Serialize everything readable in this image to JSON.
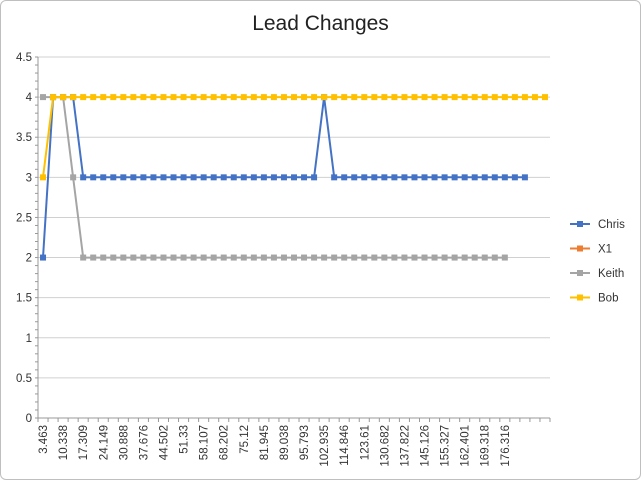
{
  "chart_data": {
    "type": "line",
    "title": "Lead Changes",
    "xlabel": "",
    "ylabel": "",
    "ylim": [
      0,
      4.5
    ],
    "y_ticks": [
      "0",
      "0.5",
      "1",
      "1.5",
      "2",
      "2.5",
      "3",
      "3.5",
      "4",
      "4.5"
    ],
    "grid": true,
    "legend_position": "right",
    "x_tick_labels": [
      "3.463",
      "10.338",
      "17.309",
      "24.149",
      "30.888",
      "37.676",
      "44.502",
      "51.33",
      "58.107",
      "68.202",
      "75.12",
      "81.945",
      "89.038",
      "95.793",
      "102.935",
      "114.846",
      "123.61",
      "130.682",
      "137.822",
      "145.126",
      "155.327",
      "162.401",
      "169.318",
      "176.316"
    ],
    "series": [
      {
        "name": "Chris",
        "color": "#4472c4",
        "values": [
          2,
          4,
          4,
          4,
          3,
          3,
          3,
          3,
          3,
          3,
          3,
          3,
          3,
          3,
          3,
          3,
          3,
          3,
          3,
          3,
          3,
          3,
          3,
          3,
          3,
          3,
          3,
          3,
          4,
          3,
          3,
          3,
          3,
          3,
          3,
          3,
          3,
          3,
          3,
          3,
          3,
          3,
          3,
          3,
          3,
          3,
          3,
          3,
          3
        ]
      },
      {
        "name": "X1",
        "color": "#ed7d31",
        "values": []
      },
      {
        "name": "Keith",
        "color": "#a5a5a5",
        "values": [
          4,
          4,
          4,
          3,
          2,
          2,
          2,
          2,
          2,
          2,
          2,
          2,
          2,
          2,
          2,
          2,
          2,
          2,
          2,
          2,
          2,
          2,
          2,
          2,
          2,
          2,
          2,
          2,
          2,
          2,
          2,
          2,
          2,
          2,
          2,
          2,
          2,
          2,
          2,
          2,
          2,
          2,
          2,
          2,
          2,
          2,
          2
        ]
      },
      {
        "name": "Bob",
        "color": "#ffc000",
        "values": [
          3,
          4,
          4,
          4,
          4,
          4,
          4,
          4,
          4,
          4,
          4,
          4,
          4,
          4,
          4,
          4,
          4,
          4,
          4,
          4,
          4,
          4,
          4,
          4,
          4,
          4,
          4,
          4,
          4,
          4,
          4,
          4,
          4,
          4,
          4,
          4,
          4,
          4,
          4,
          4,
          4,
          4,
          4,
          4,
          4,
          4,
          4,
          4,
          4,
          4,
          4
        ]
      }
    ]
  }
}
